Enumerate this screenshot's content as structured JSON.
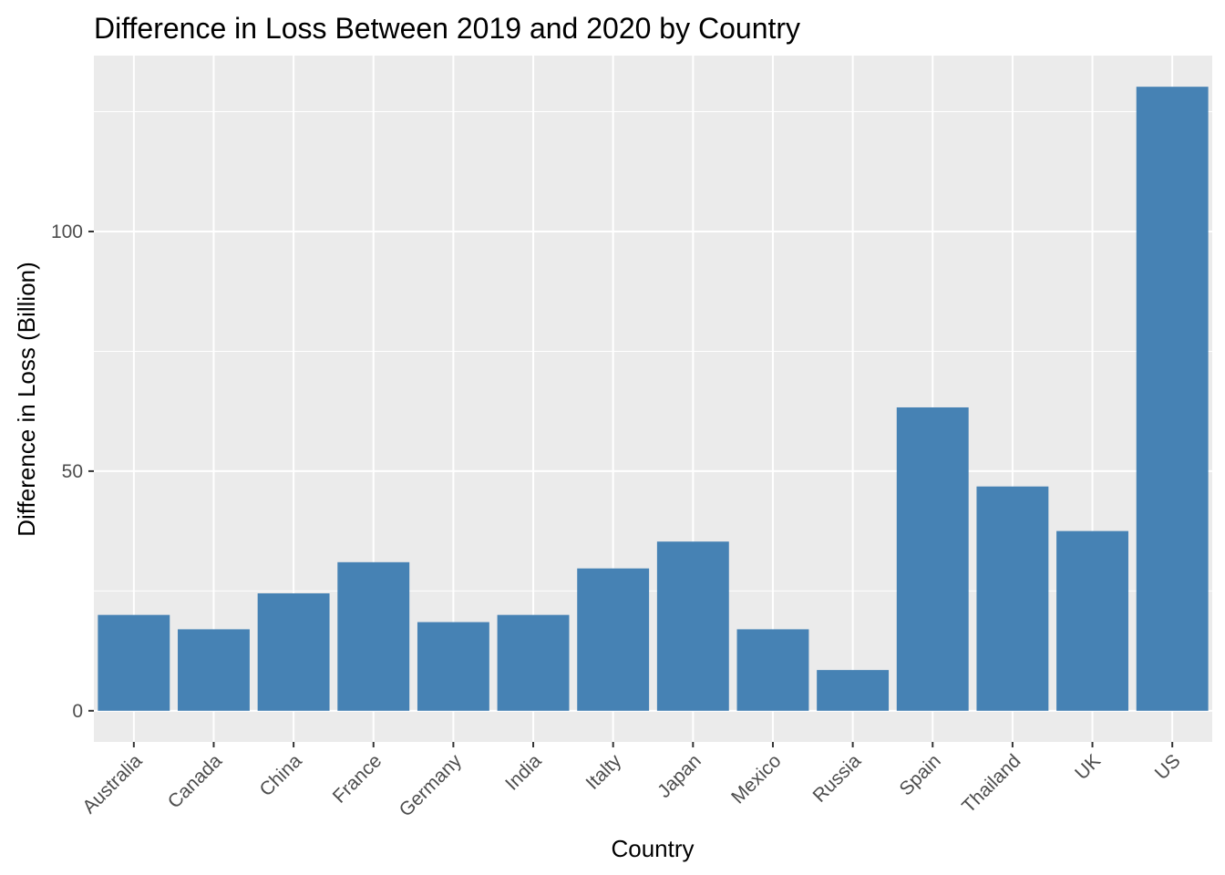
{
  "chart_data": {
    "type": "bar",
    "title": "Difference in Loss Between 2019 and 2020 by Country",
    "xlabel": "Country",
    "ylabel": "Difference in Loss (Billion)",
    "categories": [
      "Australia",
      "Canada",
      "China",
      "France",
      "Germany",
      "India",
      "Italty",
      "Japan",
      "Mexico",
      "Russia",
      "Spain",
      "Thailand",
      "UK",
      "US"
    ],
    "values": [
      20,
      17,
      24.5,
      31,
      18.5,
      20,
      29.7,
      35.3,
      17,
      8.5,
      63.3,
      46.8,
      37.5,
      130.2
    ],
    "ylim": [
      -6.5,
      136.7
    ],
    "yticks": [
      0,
      50,
      100
    ],
    "yticks_minor": [
      25,
      75,
      125
    ],
    "grid": true,
    "legend": "none",
    "bar_color": "#4682b4",
    "panel_color": "#ebebeb"
  }
}
